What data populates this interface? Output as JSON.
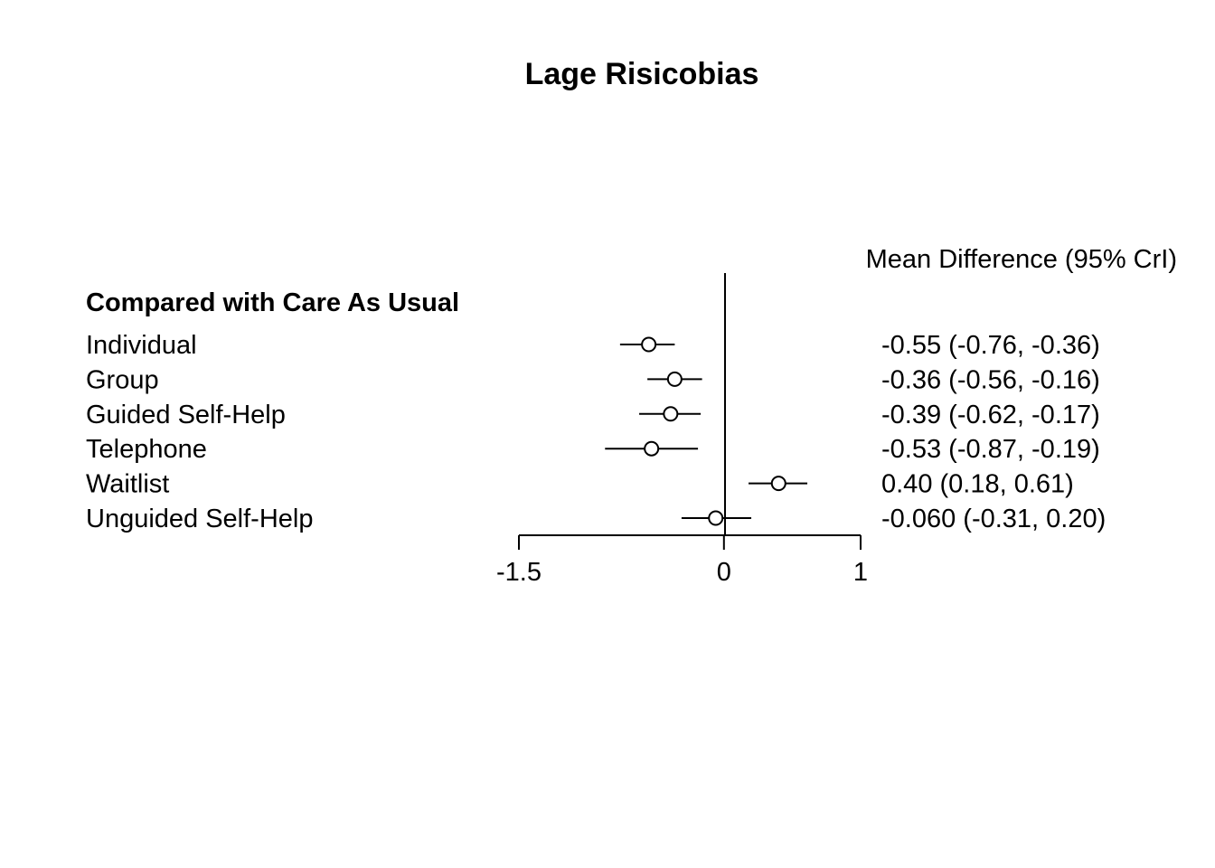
{
  "chart_data": {
    "type": "forest",
    "title": "Lage Risicobias",
    "group_heading": "Compared with Care As Usual",
    "estimate_header": "Mean Difference (95% CrI)",
    "xlim": [
      -1.5,
      1
    ],
    "ticks": [
      "-1.5",
      "0",
      "1"
    ],
    "tick_values": [
      -1.5,
      0,
      1
    ],
    "reference_line": 0,
    "rows": [
      {
        "label": "Individual",
        "mean": -0.55,
        "lower": -0.76,
        "upper": -0.36,
        "text": "-0.55 (-0.76, -0.36)"
      },
      {
        "label": "Group",
        "mean": -0.36,
        "lower": -0.56,
        "upper": -0.16,
        "text": "-0.36 (-0.56, -0.16)"
      },
      {
        "label": "Guided Self-Help",
        "mean": -0.39,
        "lower": -0.62,
        "upper": -0.17,
        "text": "-0.39 (-0.62, -0.17)"
      },
      {
        "label": "Telephone",
        "mean": -0.53,
        "lower": -0.87,
        "upper": -0.19,
        "text": "-0.53 (-0.87, -0.19)"
      },
      {
        "label": "Waitlist",
        "mean": 0.4,
        "lower": 0.18,
        "upper": 0.61,
        "text": "0.40 (0.18, 0.61)"
      },
      {
        "label": "Unguided Self-Help",
        "mean": -0.06,
        "lower": -0.31,
        "upper": 0.2,
        "text": "-0.060 (-0.31, 0.20)"
      }
    ]
  }
}
